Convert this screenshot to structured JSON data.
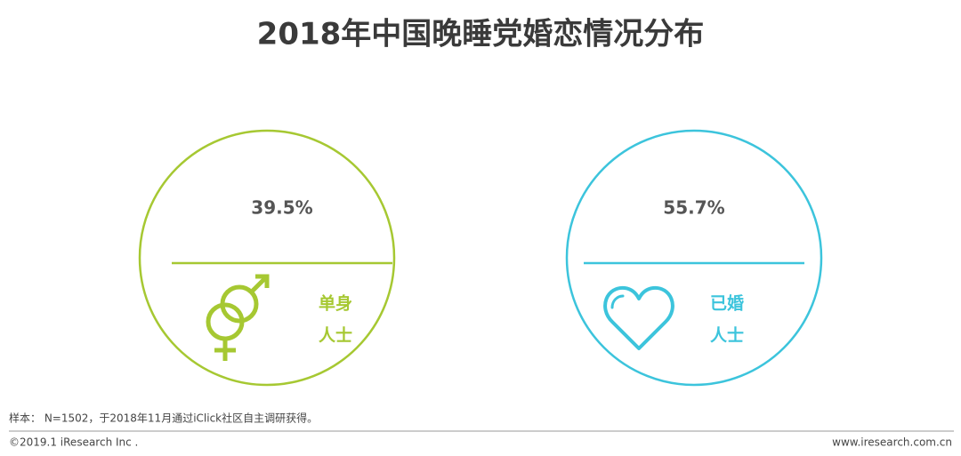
{
  "title": "2018年中国晚睡党婚恋情况分布",
  "groups": [
    {
      "value": "39.5%",
      "label_lines": [
        "单身",
        "人士"
      ]
    },
    {
      "value": "55.7%",
      "label_lines": [
        "已婚",
        "人士"
      ]
    }
  ],
  "note": "样本： N=1502，于2018年11月通过iClick社区自主调研获得。",
  "footer": {
    "left": "©2019.1 iResearch Inc .",
    "right": "www.iresearch.com.cn"
  }
}
